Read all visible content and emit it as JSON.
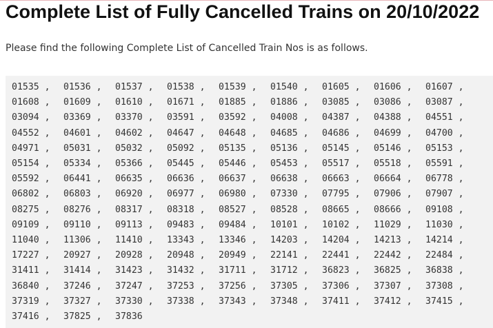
{
  "header": {
    "title": "Complete List of Fully Cancelled Trains on 20/10/2022"
  },
  "intro": "Please find the following Complete List of Cancelled Train Nos is as follows.",
  "list": {
    "separator": ",",
    "trains": [
      "01535",
      "01536",
      "01537",
      "01538",
      "01539",
      "01540",
      "01605",
      "01606",
      "01607",
      "01608",
      "01609",
      "01610",
      "01671",
      "01885",
      "01886",
      "03085",
      "03086",
      "03087",
      "03094",
      "03369",
      "03370",
      "03591",
      "03592",
      "04008",
      "04387",
      "04388",
      "04551",
      "04552",
      "04601",
      "04602",
      "04647",
      "04648",
      "04685",
      "04686",
      "04699",
      "04700",
      "04971",
      "05031",
      "05032",
      "05092",
      "05135",
      "05136",
      "05145",
      "05146",
      "05153",
      "05154",
      "05334",
      "05366",
      "05445",
      "05446",
      "05453",
      "05517",
      "05518",
      "05591",
      "05592",
      "06441",
      "06635",
      "06636",
      "06637",
      "06638",
      "06663",
      "06664",
      "06778",
      "06802",
      "06803",
      "06920",
      "06977",
      "06980",
      "07330",
      "07795",
      "07906",
      "07907",
      "08275",
      "08276",
      "08317",
      "08318",
      "08527",
      "08528",
      "08665",
      "08666",
      "09108",
      "09109",
      "09110",
      "09113",
      "09483",
      "09484",
      "10101",
      "10102",
      "11029",
      "11030",
      "11040",
      "11306",
      "11410",
      "13343",
      "13346",
      "14203",
      "14204",
      "14213",
      "14214",
      "17227",
      "20927",
      "20928",
      "20948",
      "20949",
      "22141",
      "22441",
      "22442",
      "22484",
      "31411",
      "31414",
      "31423",
      "31432",
      "31711",
      "31712",
      "36823",
      "36825",
      "36838",
      "36840",
      "37246",
      "37247",
      "37253",
      "37256",
      "37305",
      "37306",
      "37307",
      "37308",
      "37319",
      "37327",
      "37330",
      "37338",
      "37343",
      "37348",
      "37411",
      "37412",
      "37415",
      "37416",
      "37825",
      "37836"
    ]
  }
}
